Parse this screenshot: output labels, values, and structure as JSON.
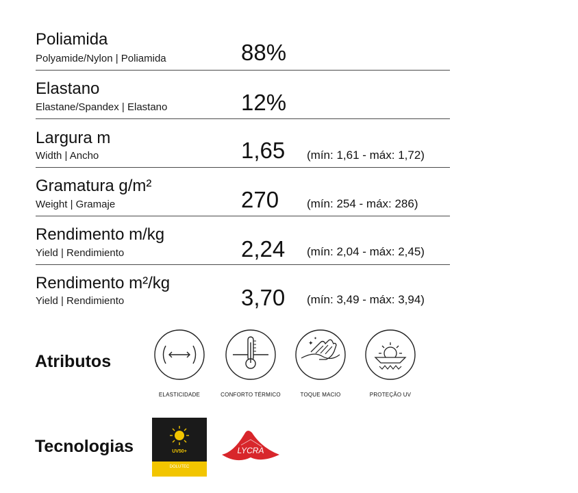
{
  "specs": [
    {
      "label": "Poliamida",
      "sub": "Polyamide/Nylon | Poliamida",
      "value": "88%",
      "range": ""
    },
    {
      "label": "Elastano",
      "sub": "Elastane/Spandex | Elastano",
      "value": "12%",
      "range": ""
    },
    {
      "label": "Largura m",
      "sub": "Width | Ancho",
      "value": "1,65",
      "range": "(mín: 1,61 - máx: 1,72)"
    },
    {
      "label": "Gramatura g/m²",
      "sub": "Weight | Gramaje",
      "value": "270",
      "range": "(mín: 254 - máx: 286)"
    },
    {
      "label": "Rendimento m/kg",
      "sub": "Yield | Rendimiento",
      "value": "2,24",
      "range": "(mín: 2,04 - máx: 2,45)"
    },
    {
      "label": "Rendimento m²/kg",
      "sub": "Yield | Rendimiento",
      "value": "3,70",
      "range": "(mín: 3,49 - máx: 3,94)"
    }
  ],
  "attributes": {
    "title": "Atributos",
    "items": [
      {
        "caption": "Elasticidade",
        "icon": "elasticity-icon"
      },
      {
        "caption": "Conforto Térmico",
        "icon": "thermometer-icon"
      },
      {
        "caption": "Toque Macio",
        "icon": "soft-touch-hand-icon"
      },
      {
        "caption": "Proteção UV",
        "icon": "uv-protection-sun-icon"
      }
    ]
  },
  "technologies": {
    "title": "Tecnologias",
    "uv_badge": {
      "text": "UV50+",
      "brand": "DOLUTEC",
      "colors": {
        "dark": "#1a1a1a",
        "yellow": "#f2c500"
      }
    },
    "lycra": {
      "text": "LYCRA",
      "color": "#d8262b"
    }
  }
}
